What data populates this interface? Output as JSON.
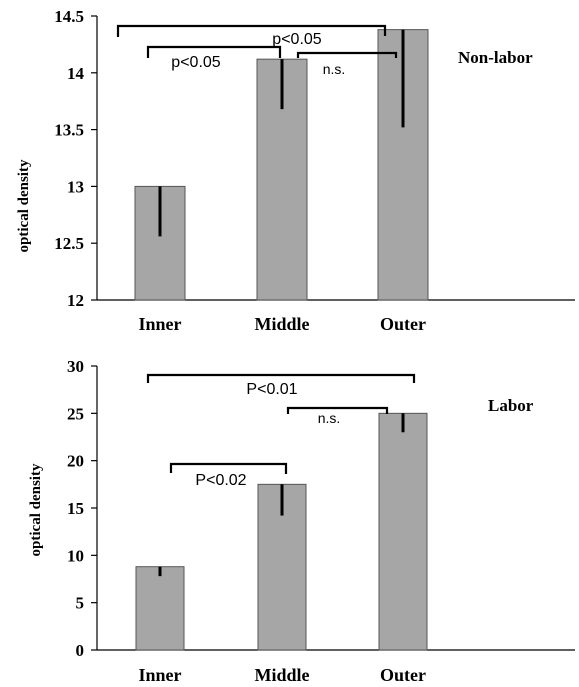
{
  "chart_data": [
    {
      "type": "bar",
      "panel_label": "Non-labor",
      "ylabel": "optical density",
      "ylim": [
        12,
        14.5
      ],
      "yticks": [
        "12",
        "12.5",
        "13",
        "13.5",
        "14",
        "14.5"
      ],
      "categories": [
        "Inner",
        "Middle",
        "Outer"
      ],
      "values": [
        13.0,
        14.12,
        14.38
      ],
      "error_low": [
        12.56,
        13.68,
        13.52
      ],
      "error_high": [
        13.0,
        14.12,
        14.38
      ],
      "significance": [
        {
          "from": "Inner",
          "to": "Outer",
          "label": "p<0.05"
        },
        {
          "from": "Inner",
          "to": "Middle",
          "label": "p<0.05"
        },
        {
          "from": "Middle",
          "to": "Outer",
          "label": "n.s."
        }
      ]
    },
    {
      "type": "bar",
      "panel_label": "Labor",
      "ylabel": "optical density",
      "ylim": [
        0,
        30
      ],
      "yticks": [
        "0",
        "5",
        "10",
        "15",
        "20",
        "25",
        "30"
      ],
      "categories": [
        "Inner",
        "Middle",
        "Outer"
      ],
      "values": [
        8.8,
        17.5,
        25.0
      ],
      "error_low": [
        7.8,
        14.2,
        23.0
      ],
      "error_high": [
        8.8,
        17.5,
        25.0
      ],
      "significance": [
        {
          "from": "Inner",
          "to": "Outer",
          "label": "P<0.01"
        },
        {
          "from": "Middle",
          "to": "Outer",
          "label": "n.s."
        },
        {
          "from": "Inner",
          "to": "Middle",
          "label": "P<0.02"
        }
      ]
    }
  ]
}
